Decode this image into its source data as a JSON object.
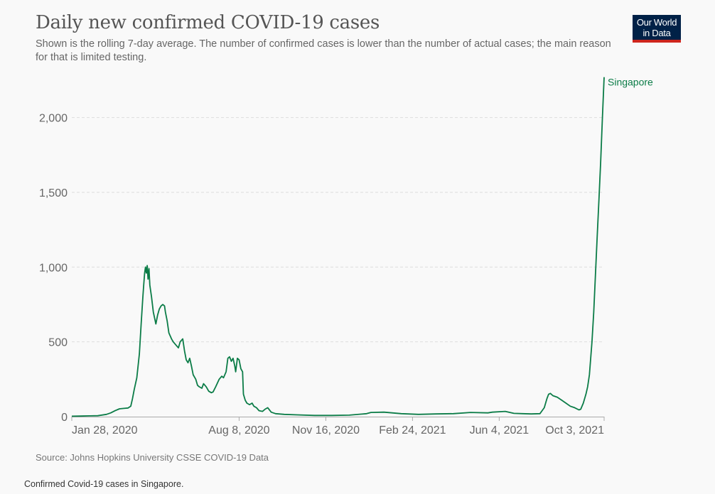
{
  "header": {
    "title": "Daily new confirmed COVID-19 cases",
    "subtitle": "Shown is the rolling 7-day average. The number of confirmed cases is lower than the number of actual cases; the main reason for that is limited testing.",
    "logo_line1": "Our World",
    "logo_line2": "in Data"
  },
  "footer": {
    "source": "Source: Johns Hopkins University CSSE COVID-19 Data",
    "caption": "Confirmed Covid-19 cases in Singapore."
  },
  "colors": {
    "series": "#0b7c47",
    "grid": "#dddddd",
    "axis": "#aaaaaa",
    "logo_bg": "#002147",
    "logo_accent": "#ce261e"
  },
  "chart_data": {
    "type": "line",
    "title": "Daily new confirmed COVID-19 cases",
    "subtitle": "Shown is the rolling 7-day average. The number of confirmed cases is lower than the number of actual cases; the main reason for that is limited testing.",
    "xlabel": "",
    "ylabel": "",
    "x_unit": "days since Jan 28, 2020",
    "xlim": [
      0,
      614
    ],
    "ylim": [
      0,
      2270
    ],
    "y_ticks": [
      {
        "value": 0,
        "label": "0"
      },
      {
        "value": 500,
        "label": "500"
      },
      {
        "value": 1000,
        "label": "1,000"
      },
      {
        "value": 1500,
        "label": "1,500"
      },
      {
        "value": 2000,
        "label": "2,000"
      }
    ],
    "x_ticks": [
      {
        "value": 0,
        "label": "Jan 28, 2020"
      },
      {
        "value": 193,
        "label": "Aug 8, 2020"
      },
      {
        "value": 293,
        "label": "Nov 16, 2020"
      },
      {
        "value": 393,
        "label": "Feb 24, 2021"
      },
      {
        "value": 493,
        "label": "Jun 4, 2021"
      },
      {
        "value": 614,
        "label": "Oct 3, 2021"
      }
    ],
    "grid": "horizontal-dashed",
    "legend": "inline-end-label",
    "series": [
      {
        "name": "Singapore",
        "x": [
          0,
          10,
          20,
          30,
          40,
          45,
          50,
          55,
          60,
          65,
          68,
          70,
          72,
          75,
          78,
          80,
          82,
          83,
          84,
          85,
          86,
          87,
          88,
          89,
          90,
          92,
          94,
          97,
          99,
          101,
          103,
          105,
          107,
          108,
          110,
          112,
          115,
          117,
          120,
          123,
          125,
          128,
          130,
          132,
          134,
          136,
          138,
          140,
          143,
          145,
          147,
          150,
          152,
          155,
          158,
          161,
          163,
          166,
          170,
          173,
          175,
          178,
          180,
          182,
          184,
          186,
          188,
          189,
          191,
          193,
          195,
          197,
          198,
          200,
          202,
          205,
          208,
          210,
          213,
          216,
          220,
          223,
          226,
          230,
          235,
          245,
          260,
          280,
          300,
          320,
          340,
          345,
          360,
          380,
          400,
          420,
          440,
          460,
          480,
          485,
          500,
          510,
          520,
          530,
          540,
          545,
          548,
          550,
          552,
          555,
          560,
          565,
          570,
          575,
          580,
          585,
          587,
          590,
          593,
          595,
          597,
          600,
          602,
          604,
          606,
          608,
          610,
          612,
          614
        ],
        "values": [
          3,
          4,
          5,
          6,
          15,
          25,
          40,
          52,
          55,
          58,
          70,
          120,
          180,
          260,
          420,
          620,
          800,
          880,
          960,
          1000,
          960,
          1010,
          920,
          990,
          880,
          800,
          700,
          620,
          680,
          720,
          740,
          750,
          740,
          700,
          640,
          560,
          520,
          500,
          480,
          460,
          500,
          520,
          440,
          380,
          360,
          390,
          340,
          280,
          250,
          210,
          200,
          190,
          220,
          200,
          170,
          160,
          165,
          200,
          250,
          270,
          260,
          300,
          390,
          400,
          370,
          390,
          340,
          300,
          390,
          380,
          320,
          300,
          150,
          110,
          90,
          80,
          90,
          70,
          60,
          40,
          35,
          50,
          60,
          30,
          20,
          15,
          12,
          8,
          8,
          10,
          20,
          28,
          30,
          20,
          15,
          18,
          20,
          28,
          25,
          30,
          35,
          22,
          20,
          18,
          20,
          60,
          120,
          150,
          155,
          140,
          130,
          110,
          90,
          70,
          60,
          45,
          50,
          90,
          150,
          200,
          280,
          500,
          700,
          950,
          1200,
          1450,
          1700,
          2000,
          2270
        ]
      }
    ]
  }
}
